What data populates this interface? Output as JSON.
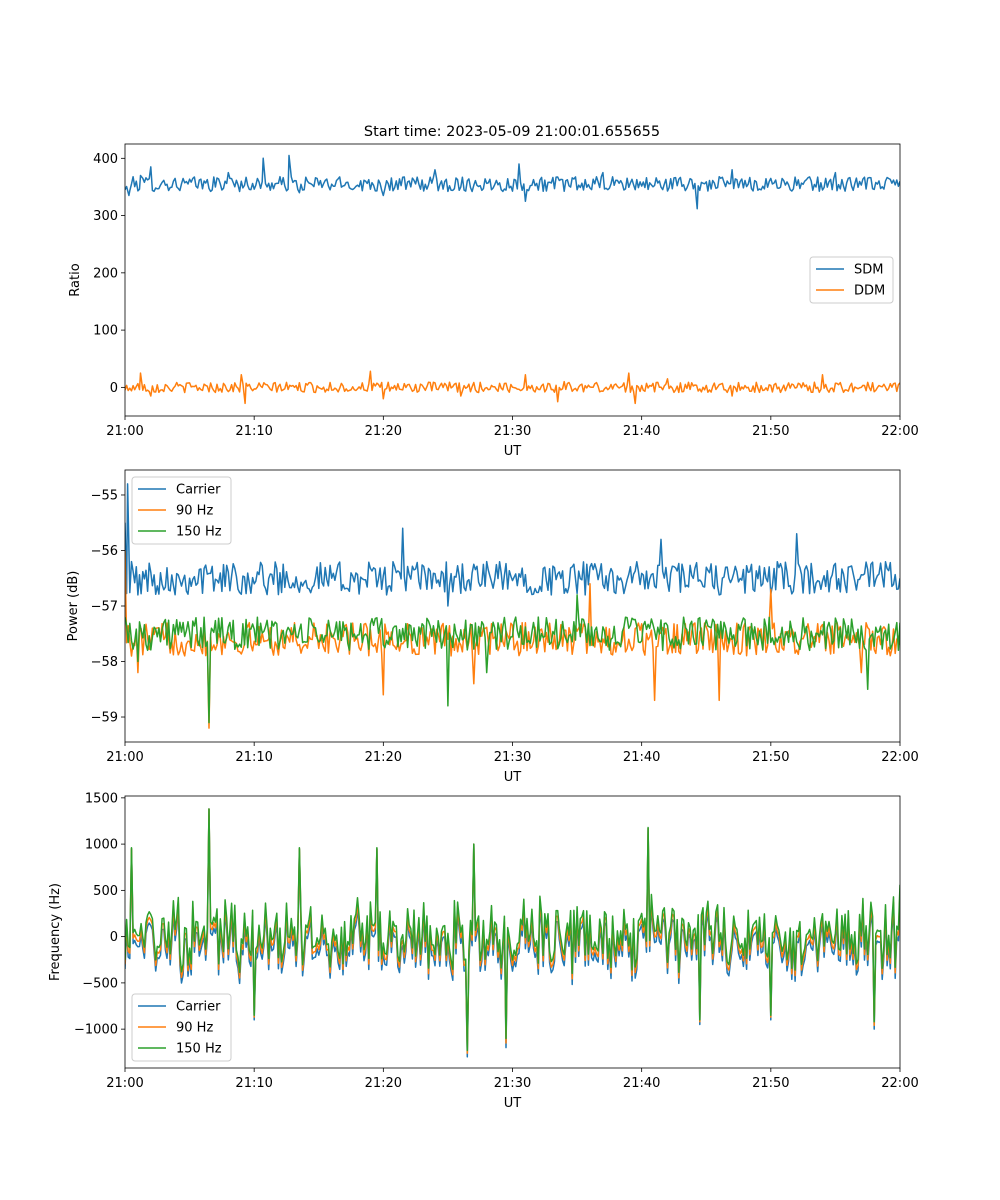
{
  "figure_title": "Start time: 2023-05-09 21:00:01.655655",
  "colors": {
    "blue": "#1f77b4",
    "orange": "#ff7f0e",
    "green": "#2ca02c"
  },
  "chart_data": [
    {
      "type": "line",
      "title": "Start time: 2023-05-09 21:00:01.655655",
      "xlabel": "UT",
      "ylabel": "Ratio",
      "xlim": [
        0,
        60
      ],
      "ylim": [
        -50,
        425
      ],
      "x_ticks": [
        0,
        10,
        20,
        30,
        40,
        50,
        60
      ],
      "x_tick_labels": [
        "21:00",
        "21:10",
        "21:20",
        "21:30",
        "21:40",
        "21:50",
        "22:00"
      ],
      "y_ticks": [
        0,
        100,
        200,
        300,
        400
      ],
      "y_tick_labels": [
        "0",
        "100",
        "200",
        "300",
        "400"
      ],
      "legend_position": "center-right",
      "series": [
        {
          "name": "SDM",
          "color": "#1f77b4",
          "baseline": 355,
          "spread": 13,
          "points": [
            [
              0,
              345
            ],
            [
              0.3,
              335
            ],
            [
              1.2,
              370
            ],
            [
              2,
              385
            ],
            [
              4,
              350
            ],
            [
              8,
              375
            ],
            [
              10.7,
              400
            ],
            [
              12.7,
              405
            ],
            [
              13.5,
              340
            ],
            [
              20,
              335
            ],
            [
              24,
              380
            ],
            [
              30.5,
              390
            ],
            [
              31,
              325
            ],
            [
              35,
              345
            ],
            [
              37,
              375
            ],
            [
              44.3,
              312
            ],
            [
              47,
              380
            ],
            [
              50,
              365
            ],
            [
              55,
              375
            ],
            [
              59.5,
              362
            ],
            [
              60,
              360
            ]
          ]
        },
        {
          "name": "DDM",
          "color": "#ff7f0e",
          "baseline": 0,
          "spread": 9,
          "points": [
            [
              0,
              -5
            ],
            [
              1.2,
              25
            ],
            [
              2,
              -15
            ],
            [
              9,
              22
            ],
            [
              9.3,
              -28
            ],
            [
              19,
              28
            ],
            [
              20,
              -20
            ],
            [
              26,
              -15
            ],
            [
              31,
              22
            ],
            [
              33.5,
              -25
            ],
            [
              34,
              10
            ],
            [
              39,
              25
            ],
            [
              39.5,
              -28
            ],
            [
              42,
              15
            ],
            [
              47,
              -15
            ],
            [
              54,
              22
            ],
            [
              60,
              8
            ]
          ]
        }
      ]
    },
    {
      "type": "line",
      "xlabel": "UT",
      "ylabel": "Power (dB)",
      "xlim": [
        0,
        60
      ],
      "ylim": [
        -59.45,
        -54.55
      ],
      "x_ticks": [
        0,
        10,
        20,
        30,
        40,
        50,
        60
      ],
      "x_tick_labels": [
        "21:00",
        "21:10",
        "21:20",
        "21:30",
        "21:40",
        "21:50",
        "22:00"
      ],
      "y_ticks": [
        -59,
        -58,
        -57,
        -56,
        -55
      ],
      "y_tick_labels": [
        "−59",
        "−58",
        "−57",
        "−56",
        "−55"
      ],
      "legend_position": "top-left",
      "series": [
        {
          "name": "Carrier",
          "color": "#1f77b4",
          "baseline": -56.5,
          "spread": 0.3,
          "points": [
            [
              0,
              -55.5
            ],
            [
              0.2,
              -54.8
            ],
            [
              0.5,
              -56.2
            ],
            [
              1,
              -56.8
            ],
            [
              5,
              -56.5
            ],
            [
              10,
              -56.6
            ],
            [
              16,
              -56.5
            ],
            [
              21.5,
              -55.6
            ],
            [
              25,
              -57
            ],
            [
              28,
              -56.2
            ],
            [
              33,
              -56.8
            ],
            [
              36,
              -56.3
            ],
            [
              41.5,
              -55.8
            ],
            [
              46,
              -56.8
            ],
            [
              52,
              -55.7
            ],
            [
              56,
              -56.3
            ],
            [
              60,
              -56.5
            ]
          ]
        },
        {
          "name": "90 Hz",
          "color": "#ff7f0e",
          "baseline": -57.6,
          "spread": 0.3,
          "points": [
            [
              0,
              -56
            ],
            [
              0.5,
              -57.9
            ],
            [
              1,
              -58.2
            ],
            [
              6.5,
              -59.2
            ],
            [
              6.7,
              -57.8
            ],
            [
              20,
              -58.6
            ],
            [
              25,
              -57.6
            ],
            [
              27,
              -58.4
            ],
            [
              31,
              -57.3
            ],
            [
              34.5,
              -57.5
            ],
            [
              36,
              -56.6
            ],
            [
              41,
              -58.7
            ],
            [
              46,
              -58.7
            ],
            [
              50,
              -56.7
            ],
            [
              57,
              -58.2
            ],
            [
              60,
              -57.7
            ]
          ]
        },
        {
          "name": "150 Hz",
          "color": "#2ca02c",
          "baseline": -57.5,
          "spread": 0.3,
          "points": [
            [
              0,
              -57.2
            ],
            [
              1,
              -58
            ],
            [
              6.5,
              -59.1
            ],
            [
              6.7,
              -57.4
            ],
            [
              20,
              -57.7
            ],
            [
              25,
              -58.8
            ],
            [
              28,
              -58.2
            ],
            [
              32,
              -57.2
            ],
            [
              35,
              -56.8
            ],
            [
              39,
              -57.4
            ],
            [
              47,
              -57.6
            ],
            [
              53,
              -57.8
            ],
            [
              57.5,
              -58.5
            ],
            [
              60,
              -57.3
            ]
          ]
        }
      ]
    },
    {
      "type": "line",
      "xlabel": "UT",
      "ylabel": "Frequency (Hz)",
      "xlim": [
        0,
        60
      ],
      "ylim": [
        -1420,
        1520
      ],
      "x_ticks": [
        0,
        10,
        20,
        30,
        40,
        50,
        60
      ],
      "x_tick_labels": [
        "21:00",
        "21:10",
        "21:20",
        "21:30",
        "21:40",
        "21:50",
        "22:00"
      ],
      "y_ticks": [
        -1000,
        -500,
        0,
        500,
        1000,
        1500
      ],
      "y_tick_labels": [
        "−1000",
        "−500",
        "0",
        "500",
        "1000",
        "1500"
      ],
      "legend_position": "bottom-left",
      "series": [
        {
          "name": "Carrier",
          "color": "#1f77b4",
          "baseline": -40,
          "spread": 280,
          "offset": -60,
          "points": [
            [
              0,
              -350
            ],
            [
              0.5,
              950
            ],
            [
              6.5,
              1380
            ],
            [
              10,
              -900
            ],
            [
              13.5,
              950
            ],
            [
              19.5,
              950
            ],
            [
              26.5,
              -1300
            ],
            [
              27,
              1000
            ],
            [
              29.5,
              -1200
            ],
            [
              40.5,
              1170
            ],
            [
              44.5,
              -950
            ],
            [
              50,
              -900
            ],
            [
              58,
              -1000
            ],
            [
              60,
              450
            ]
          ]
        },
        {
          "name": "90 Hz",
          "color": "#ff7f0e",
          "baseline": -10,
          "spread": 280,
          "offset": -30,
          "points": [
            [
              0,
              -300
            ],
            [
              0.5,
              950
            ],
            [
              6.5,
              1380
            ],
            [
              10,
              -870
            ],
            [
              13.5,
              950
            ],
            [
              19.5,
              950
            ],
            [
              26.5,
              -1260
            ],
            [
              27,
              1000
            ],
            [
              29.5,
              -1150
            ],
            [
              40.5,
              1170
            ],
            [
              44.5,
              -920
            ],
            [
              50,
              -870
            ],
            [
              58,
              -960
            ],
            [
              60,
              480
            ]
          ]
        },
        {
          "name": "150 Hz",
          "color": "#2ca02c",
          "baseline": 20,
          "spread": 280,
          "offset": 0,
          "points": [
            [
              0,
              -250
            ],
            [
              0.5,
              960
            ],
            [
              6.5,
              1380
            ],
            [
              10,
              -850
            ],
            [
              13.5,
              960
            ],
            [
              19.5,
              960
            ],
            [
              26.5,
              -1230
            ],
            [
              27,
              1000
            ],
            [
              29.5,
              -1100
            ],
            [
              40.5,
              1180
            ],
            [
              44.5,
              -900
            ],
            [
              50,
              -850
            ],
            [
              58,
              -920
            ],
            [
              60,
              560
            ]
          ]
        }
      ]
    }
  ]
}
